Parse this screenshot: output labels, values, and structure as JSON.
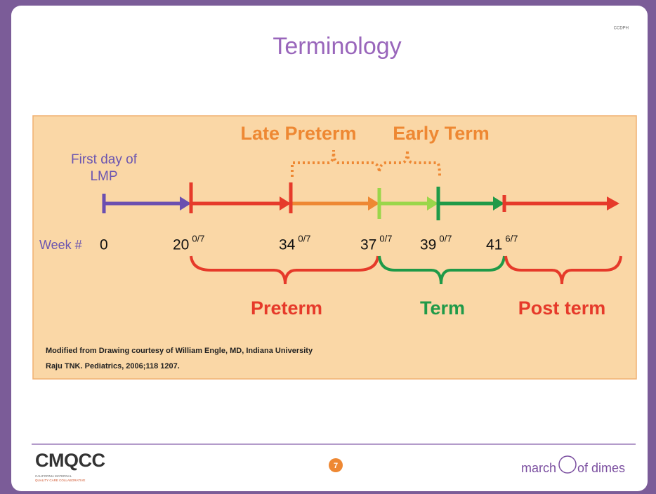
{
  "slide": {
    "corner_tag": "CCDPH",
    "title": "Terminology",
    "lmp_label": [
      "First day of",
      "LMP"
    ],
    "brackets_top": [
      "Late Preterm",
      "Early Term"
    ],
    "week_label": "Week #",
    "weeks": [
      {
        "number": "0"
      },
      {
        "number": "20",
        "fraction": "0/7"
      },
      {
        "number": "34",
        "fraction": "0/7"
      },
      {
        "number": "37",
        "fraction": "0/7"
      },
      {
        "number": "39",
        "fraction": "0/7"
      },
      {
        "number": "41",
        "fraction": "6/7"
      }
    ],
    "periods": [
      "Preterm",
      "Term",
      "Post term"
    ],
    "credits": [
      "Modified from Drawing courtesy of William Engle, MD, Indiana University",
      "Raju TNK. Pediatrics, 2006;118 1207."
    ],
    "footer": {
      "logo": "CMQCC",
      "logo_sub": [
        "CALIFORNIA MATERNAL",
        "QUALITY CARE COLLABORATIVE"
      ],
      "page": "7",
      "brand_left": "march",
      "brand_right": "of dimes"
    }
  }
}
